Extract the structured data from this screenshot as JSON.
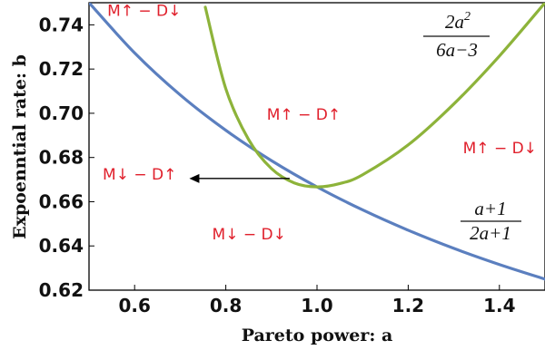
{
  "chart_data": {
    "type": "line",
    "xlabel": "Pareto power: a",
    "ylabel": "Expoenntial rate: b",
    "xlim": [
      0.5,
      1.5
    ],
    "ylim": [
      0.62,
      0.75
    ],
    "x_ticks": [
      "0.6",
      "0.8",
      "1.0",
      "1.2",
      "1.4"
    ],
    "x_tick_values": [
      0.6,
      0.8,
      1.0,
      1.2,
      1.4
    ],
    "y_ticks": [
      "0.62",
      "0.64",
      "0.66",
      "0.68",
      "0.70",
      "0.72",
      "0.74"
    ],
    "y_tick_values": [
      0.62,
      0.64,
      0.66,
      0.68,
      0.7,
      0.72,
      0.74
    ],
    "grid": false,
    "series": [
      {
        "formula": "(a+1)/(2a+1)",
        "color": "#5b7fbf",
        "x": [
          0.5,
          0.6,
          0.7,
          0.8,
          0.9,
          1.0,
          1.1,
          1.2,
          1.3,
          1.4,
          1.5
        ],
        "y": [
          0.75,
          0.7273,
          0.7083,
          0.6923,
          0.6786,
          0.6667,
          0.6563,
          0.6471,
          0.6389,
          0.6316,
          0.625
        ]
      },
      {
        "formula": "2a^2/(6a-3)",
        "color": "#8db33a",
        "x": [
          0.755,
          0.8,
          0.85,
          0.9,
          0.95,
          1.0,
          1.05,
          1.1,
          1.2,
          1.3,
          1.4,
          1.5
        ],
        "y": [
          0.748,
          0.7111,
          0.6881,
          0.675,
          0.6685,
          0.6667,
          0.6682,
          0.6722,
          0.6857,
          0.7042,
          0.7259,
          0.75
        ]
      }
    ],
    "formula_labels": {
      "blue": {
        "numerator": "a+1",
        "denominator": "2a+1"
      },
      "green": {
        "numerator": "2a",
        "superscript": "2",
        "denominator": "6a−3"
      }
    },
    "region_labels": [
      {
        "text": "M↑ − D↓",
        "x": 0.54,
        "y": 0.744
      },
      {
        "text": "M↑ − D↑",
        "x": 0.89,
        "y": 0.697
      },
      {
        "text": "M↑ − D↓",
        "x": 1.32,
        "y": 0.682
      },
      {
        "text": "M↓ − D↑",
        "x": 0.53,
        "y": 0.67
      },
      {
        "text": "M↓ − D↓",
        "x": 0.77,
        "y": 0.643
      }
    ],
    "annotations": [
      {
        "type": "arrow",
        "from": [
          0.94,
          0.6705
        ],
        "to": [
          0.72,
          0.6705
        ],
        "color": "#000000"
      }
    ],
    "label_color": "#e0202c",
    "frame_color": "#000000"
  }
}
